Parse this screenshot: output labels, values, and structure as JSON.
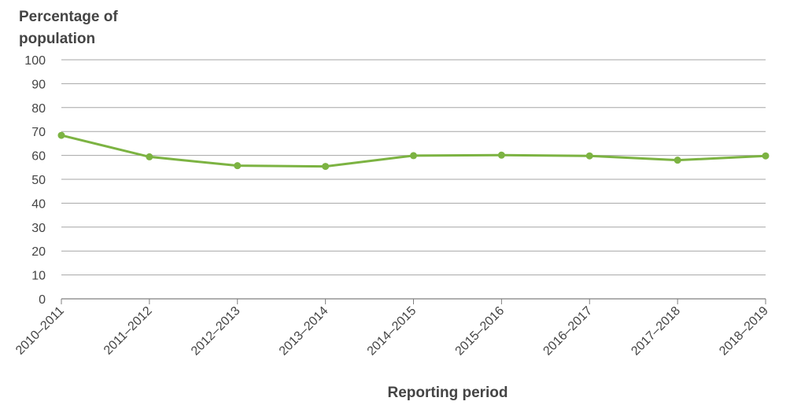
{
  "chart_data": {
    "type": "line",
    "ylabel_lines": [
      "Percentage of",
      "population"
    ],
    "xlabel": "Reporting period",
    "categories": [
      "2010–2011",
      "2011–2012",
      "2012–2013",
      "2013–2014",
      "2014–2015",
      "2015–2016",
      "2016–2017",
      "2017–2018",
      "2018–2019"
    ],
    "series": [
      {
        "name": "Percentage of population",
        "values": [
          68.4,
          59.4,
          55.7,
          55.4,
          59.9,
          60.1,
          59.8,
          58.0,
          59.8
        ]
      }
    ],
    "ylim": [
      0,
      100
    ],
    "yticks": [
      0,
      10,
      20,
      30,
      40,
      50,
      60,
      70,
      80,
      90,
      100
    ],
    "grid": true,
    "color": "#7cb342"
  }
}
